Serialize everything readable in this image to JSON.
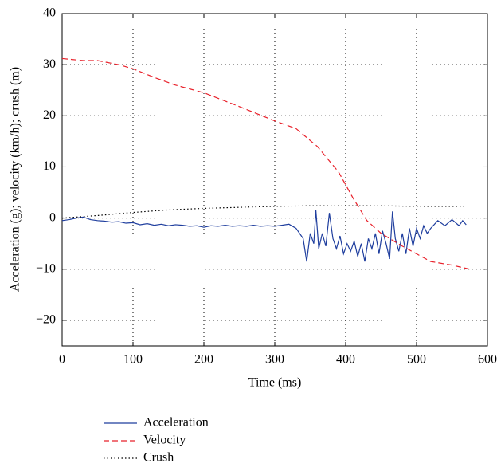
{
  "chart_data": {
    "type": "line",
    "x_label": "Time (ms)",
    "y_label": "Acceleration (g); velocity (km/h); crush (m)",
    "xlim": [
      0,
      600
    ],
    "xticks": [
      0,
      100,
      200,
      300,
      400,
      500,
      600
    ],
    "ylim": [
      -25,
      40
    ],
    "yticks": [
      {
        "value": -20,
        "label": "−20"
      },
      {
        "value": -10,
        "label": "−10"
      },
      0,
      10,
      20,
      30,
      40
    ],
    "grid": true,
    "legend": "below",
    "series": [
      {
        "name": "Acceleration",
        "color": "#1f3e9e",
        "dash": "solid",
        "x": [
          0,
          10,
          20,
          30,
          40,
          50,
          60,
          70,
          80,
          90,
          100,
          110,
          120,
          130,
          140,
          150,
          160,
          170,
          180,
          190,
          200,
          210,
          220,
          230,
          240,
          250,
          260,
          270,
          280,
          290,
          300,
          310,
          320,
          330,
          340,
          345,
          350,
          355,
          358,
          362,
          367,
          372,
          377,
          382,
          387,
          392,
          397,
          402,
          407,
          412,
          417,
          422,
          427,
          432,
          437,
          442,
          447,
          452,
          457,
          462,
          466,
          470,
          475,
          480,
          485,
          490,
          495,
          500,
          505,
          510,
          515,
          520,
          530,
          540,
          550,
          560,
          565,
          570
        ],
        "values": [
          -0.5,
          -0.3,
          0,
          0.2,
          -0.3,
          -0.5,
          -0.6,
          -0.8,
          -0.7,
          -1,
          -0.9,
          -1.3,
          -1.1,
          -1.4,
          -1.2,
          -1.5,
          -1.3,
          -1.4,
          -1.6,
          -1.5,
          -1.8,
          -1.5,
          -1.6,
          -1.4,
          -1.6,
          -1.5,
          -1.6,
          -1.4,
          -1.6,
          -1.5,
          -1.6,
          -1.4,
          -1.2,
          -2,
          -4,
          -8.5,
          -3,
          -5,
          1.5,
          -6,
          -3,
          -5.5,
          1,
          -4,
          -6,
          -3.5,
          -7,
          -5,
          -6.5,
          -4.5,
          -7.5,
          -5,
          -8.5,
          -4,
          -6,
          -3,
          -7,
          -2.5,
          -5,
          -8,
          1.3,
          -4,
          -6.5,
          -3,
          -7,
          -2,
          -5.5,
          -2,
          -4,
          -1.5,
          -3,
          -2,
          -0.5,
          -1.5,
          -0.3,
          -1.5,
          -0.5,
          -1.3
        ]
      },
      {
        "name": "Velocity",
        "color": "#e8202a",
        "dash": "dashed",
        "x": [
          0,
          30,
          50,
          80,
          100,
          130,
          160,
          200,
          250,
          300,
          330,
          360,
          390,
          410,
          430,
          450,
          480,
          500,
          520,
          550,
          575
        ],
        "values": [
          31.2,
          30.8,
          30.8,
          30,
          29.2,
          27.5,
          26,
          24.5,
          21.8,
          19,
          17.5,
          14,
          9,
          4,
          -0.5,
          -3,
          -5.5,
          -7,
          -8.5,
          -9.2,
          -10
        ]
      },
      {
        "name": "Crush",
        "color": "#000000",
        "dash": "dotted",
        "x": [
          0,
          50,
          100,
          150,
          200,
          250,
          300,
          350,
          400,
          450,
          500,
          570
        ],
        "values": [
          0,
          0.5,
          1.1,
          1.6,
          1.9,
          2.1,
          2.3,
          2.4,
          2.4,
          2.4,
          2.3,
          2.3
        ]
      }
    ]
  }
}
